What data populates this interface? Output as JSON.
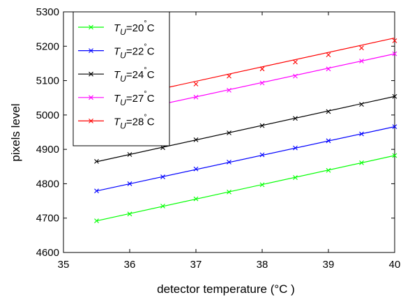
{
  "chart_data": {
    "type": "line",
    "xlabel": "detector temperature (°C )",
    "ylabel": "pixels level",
    "xlim": [
      35,
      40
    ],
    "ylim": [
      4600,
      5300
    ],
    "xticks": [
      35,
      36,
      37,
      38,
      39,
      40
    ],
    "yticks": [
      4600,
      4700,
      4800,
      4900,
      5000,
      5100,
      5200,
      5300
    ],
    "grid": false,
    "legend_position": "top-left",
    "x": [
      35.5,
      36,
      36.5,
      37,
      37.5,
      38,
      38.5,
      39,
      39.5,
      40
    ],
    "series": [
      {
        "name": "T_U=20°C",
        "legend_main": "T",
        "legend_sub": "U",
        "legend_rest": "=20",
        "legend_unit": "C",
        "color": "#00ff00",
        "values": [
          4692,
          4712,
          4735,
          4756,
          4776,
          4797,
          4818,
          4839,
          4861,
          4882
        ],
        "fit": [
          4692,
          4882
        ]
      },
      {
        "name": "T_U=22°C",
        "legend_main": "T",
        "legend_sub": "U",
        "legend_rest": "=22",
        "legend_unit": "C",
        "color": "#0000ff",
        "values": [
          4779,
          4800,
          4820,
          4843,
          4863,
          4884,
          4904,
          4925,
          4945,
          4966
        ],
        "fit": [
          4779,
          4966
        ]
      },
      {
        "name": "T_U=24°C",
        "legend_main": "T",
        "legend_sub": "U",
        "legend_rest": "=24",
        "legend_unit": "C",
        "color": "#000000",
        "values": [
          4865,
          4885,
          4905,
          4928,
          4948,
          4969,
          4990,
          5010,
          5031,
          5054
        ],
        "fit": [
          4864,
          5054
        ]
      },
      {
        "name": "T_U=27°C",
        "legend_main": "T",
        "legend_sub": "U",
        "legend_rest": "=27",
        "legend_unit": "C",
        "color": "#ff00ff",
        "values": [
          4990,
          5011,
          5031,
          5052,
          5072,
          5093,
          5113,
          5134,
          5157,
          5178
        ],
        "fit": [
          4990,
          5178
        ]
      },
      {
        "name": "T_U=28°C",
        "legend_main": "T",
        "legend_sub": "U",
        "legend_rest": "=28",
        "legend_unit": "C",
        "color": "#ff0000",
        "values": [
          5036,
          5058,
          5075,
          5090,
          5113,
          5134,
          5154,
          5175,
          5195,
          5216
        ],
        "fit": [
          5035,
          5224
        ]
      }
    ]
  }
}
